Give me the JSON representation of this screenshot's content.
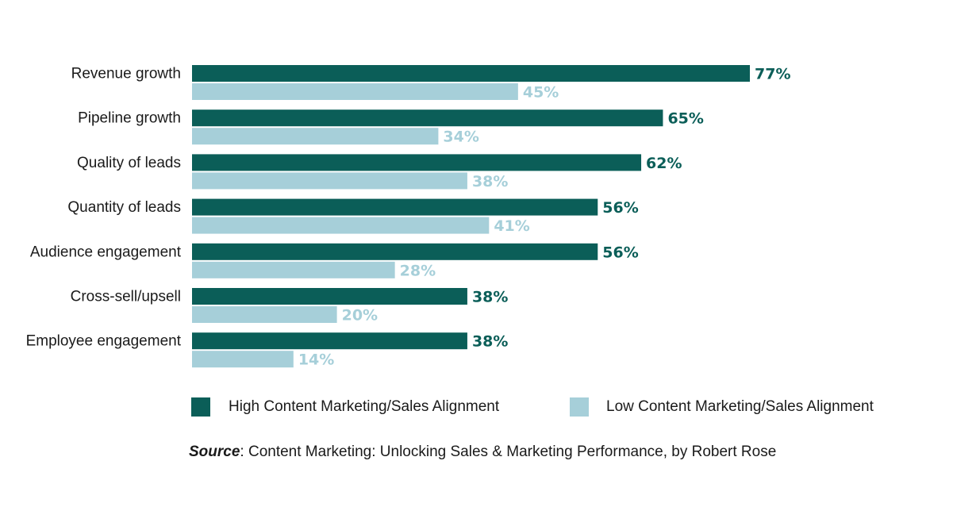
{
  "colors": {
    "high": "#0b5e58",
    "low": "#a6cfd9",
    "text": "#1a1a1a"
  },
  "chart_data": {
    "type": "bar",
    "orientation": "horizontal",
    "title": "",
    "xlabel": "",
    "ylabel": "",
    "xlim": [
      0,
      100
    ],
    "grid": false,
    "value_suffix": "%",
    "categories": [
      "Revenue growth",
      "Pipeline growth",
      "Quality of leads",
      "Quantity of leads",
      "Audience engagement",
      "Cross-sell/upsell",
      "Employee engagement"
    ],
    "series": [
      {
        "name": "High Content Marketing/Sales Alignment",
        "color_key": "high",
        "values": [
          77,
          65,
          62,
          56,
          56,
          38,
          38
        ]
      },
      {
        "name": "Low Content Marketing/Sales Alignment",
        "color_key": "low",
        "values": [
          45,
          34,
          38,
          41,
          28,
          20,
          14
        ]
      }
    ],
    "legend_position": "bottom"
  },
  "source": {
    "label": "Source",
    "text": ": Content Marketing: Unlocking Sales & Marketing Performance, by Robert Rose"
  }
}
